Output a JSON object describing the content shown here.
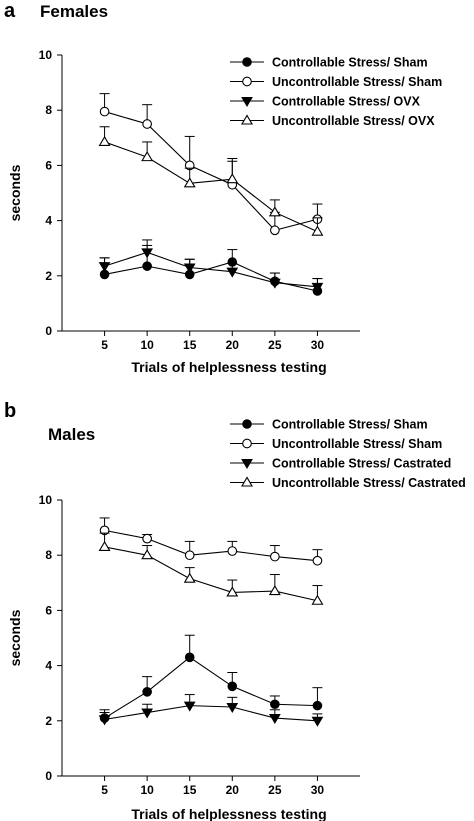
{
  "chart_data": [
    {
      "panel_label": "a",
      "type": "line",
      "title": "Females",
      "xlabel": "Trials of helplessness testing",
      "ylabel": "seconds",
      "x": [
        5,
        10,
        15,
        20,
        25,
        30
      ],
      "xlim": [
        0,
        35
      ],
      "ylim": [
        0,
        10
      ],
      "yticks": [
        0,
        2,
        4,
        6,
        8,
        10
      ],
      "grid": false,
      "legend_position": "top-right",
      "series": [
        {
          "name": "Controllable Stress/ Sham",
          "marker": "circle-filled",
          "values": [
            2.05,
            2.35,
            2.05,
            2.5,
            1.8,
            1.45
          ],
          "errors": [
            0.6,
            0.95,
            0.55,
            0.45,
            0.3,
            0.45
          ]
        },
        {
          "name": "Uncontrollable Stress/ Sham",
          "marker": "circle-open",
          "values": [
            7.95,
            7.5,
            6.0,
            5.3,
            3.65,
            4.05
          ],
          "errors": [
            0.65,
            0.7,
            1.05,
            0.95,
            0.65,
            0.55
          ]
        },
        {
          "name": "Controllable Stress/ OVX",
          "marker": "triangle-down-filled",
          "values": [
            2.35,
            2.85,
            2.3,
            2.15,
            1.75,
            1.6
          ],
          "errors": [
            0.3,
            0.25,
            0.3,
            0.3,
            0.35,
            0.3
          ]
        },
        {
          "name": "Uncontrollable Stress/ OVX",
          "marker": "triangle-up-open",
          "values": [
            6.85,
            6.3,
            5.35,
            5.5,
            4.3,
            3.6
          ],
          "errors": [
            0.55,
            0.55,
            0.55,
            0.65,
            0.45,
            0.5
          ]
        }
      ]
    },
    {
      "panel_label": "b",
      "type": "line",
      "title": "Males",
      "xlabel": "Trials of helplessness testing",
      "ylabel": "seconds",
      "x": [
        5,
        10,
        15,
        20,
        25,
        30
      ],
      "xlim": [
        0,
        35
      ],
      "ylim": [
        0,
        10
      ],
      "yticks": [
        0,
        2,
        4,
        6,
        8,
        10
      ],
      "grid": false,
      "legend_position": "top-right",
      "series": [
        {
          "name": "Controllable Stress/ Sham",
          "marker": "circle-filled",
          "values": [
            2.1,
            3.05,
            4.3,
            3.25,
            2.6,
            2.55
          ],
          "errors": [
            0.3,
            0.55,
            0.8,
            0.5,
            0.3,
            0.65
          ]
        },
        {
          "name": "Uncontrollable Stress/ Sham",
          "marker": "circle-open",
          "values": [
            8.9,
            8.6,
            8.0,
            8.15,
            7.95,
            7.8
          ],
          "errors": [
            0.45,
            0.15,
            0.5,
            0.35,
            0.4,
            0.4
          ]
        },
        {
          "name": "Controllable Stress/ Castrated",
          "marker": "triangle-down-filled",
          "values": [
            2.05,
            2.3,
            2.55,
            2.5,
            2.1,
            2.0
          ],
          "errors": [
            0.25,
            0.3,
            0.4,
            0.35,
            0.3,
            0.25
          ]
        },
        {
          "name": "Uncontrollable Stress/ Castrated",
          "marker": "triangle-up-open",
          "values": [
            8.3,
            8.0,
            7.15,
            6.65,
            6.7,
            6.35
          ],
          "errors": [
            0.5,
            0.35,
            0.4,
            0.45,
            0.6,
            0.55
          ]
        }
      ]
    }
  ]
}
